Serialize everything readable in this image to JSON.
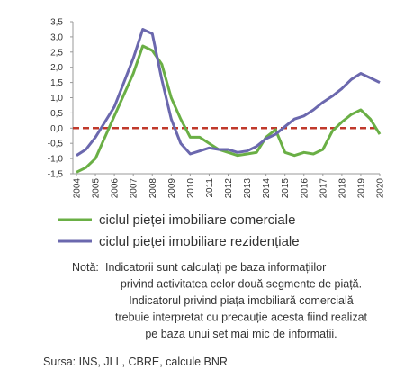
{
  "chart_data": {
    "type": "line",
    "x": [
      2004,
      2004.5,
      2005,
      2005.5,
      2006,
      2006.5,
      2007,
      2007.5,
      2008,
      2008.5,
      2009,
      2009.5,
      2010,
      2010.5,
      2011,
      2011.5,
      2012,
      2012.5,
      2013,
      2013.5,
      2014,
      2014.5,
      2015,
      2015.5,
      2016,
      2016.5,
      2017,
      2017.5,
      2018,
      2018.5,
      2019,
      2019.5,
      2020
    ],
    "series": [
      {
        "name": "ciclul pieței imobiliare comerciale",
        "color": "#6aaf45",
        "values": [
          -1.45,
          -1.3,
          -1.0,
          -0.3,
          0.4,
          1.1,
          1.8,
          2.7,
          2.55,
          2.1,
          1.0,
          0.3,
          -0.3,
          -0.3,
          -0.5,
          -0.7,
          -0.8,
          -0.9,
          -0.85,
          -0.8,
          -0.3,
          -0.05,
          -0.8,
          -0.9,
          -0.8,
          -0.85,
          -0.7,
          -0.1,
          0.2,
          0.45,
          0.6,
          0.3,
          -0.2
        ]
      },
      {
        "name": "ciclul pieței imobiliare rezidențiale",
        "color": "#6b68ae",
        "values": [
          -0.9,
          -0.7,
          -0.3,
          0.2,
          0.7,
          1.5,
          2.3,
          3.25,
          3.1,
          1.6,
          0.3,
          -0.5,
          -0.85,
          -0.75,
          -0.65,
          -0.7,
          -0.7,
          -0.8,
          -0.75,
          -0.6,
          -0.35,
          -0.2,
          0.05,
          0.3,
          0.4,
          0.6,
          0.85,
          1.05,
          1.3,
          1.6,
          1.8,
          1.65,
          1.5
        ]
      }
    ],
    "xlim": [
      2004,
      2020
    ],
    "xticks": [
      2004,
      2005,
      2006,
      2007,
      2008,
      2009,
      2010,
      2011,
      2012,
      2013,
      2014,
      2015,
      2016,
      2017,
      2018,
      2019,
      2020
    ],
    "ylim": [
      -1.5,
      3.5
    ],
    "yticks": [
      {
        "value": 3.5,
        "label": "3,5"
      },
      {
        "value": 3.0,
        "label": "3,0"
      },
      {
        "value": 2.5,
        "label": "2,5"
      },
      {
        "value": 2.0,
        "label": "2,0"
      },
      {
        "value": 1.5,
        "label": "1,5"
      },
      {
        "value": 1.0,
        "label": "1,0"
      },
      {
        "value": 0.5,
        "label": "0,5"
      },
      {
        "value": 0,
        "label": "0,0"
      },
      {
        "value": -0.5,
        "label": "-0,5"
      },
      {
        "value": -1.0,
        "label": "-1,0"
      },
      {
        "value": -1.5,
        "label": "-1,5"
      }
    ],
    "reference_line": {
      "value": 0,
      "color": "#c0392b"
    },
    "note": {
      "label": "Notă:",
      "lines": [
        "Indicatorii sunt calculați pe baza informațiilor",
        "privind activitatea celor două segmente de piață.",
        "Indicatorul privind piața imobiliară comercială",
        "trebuie interpretat cu precauție acesta fiind realizat",
        "pe baza unui set mai mic de informații."
      ]
    },
    "source": "Sursa: INS, JLL, CBRE, calcule BNR"
  }
}
